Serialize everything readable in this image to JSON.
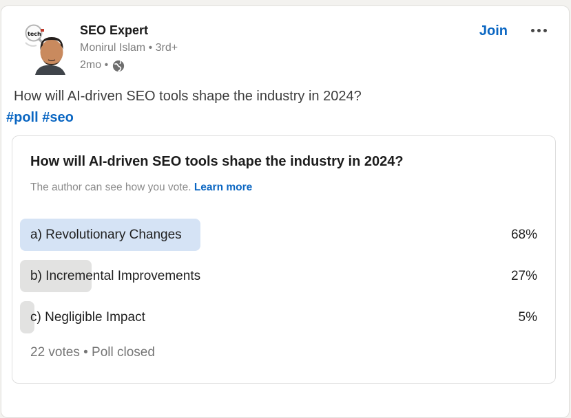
{
  "colors": {
    "accent_blue": "#0a66c2",
    "bar_highlight": "#d5e3f5",
    "bar_neutral": "#e2e2e1"
  },
  "header": {
    "page_name": "SEO Expert",
    "author_line": "Monirul Islam • 3rd+",
    "time_label": "2mo •",
    "join_label": "Join"
  },
  "post": {
    "body_text": "How will AI-driven SEO tools shape the industry in 2024?",
    "hashtags": "#poll #seo"
  },
  "poll": {
    "question": "How will AI-driven SEO tools shape the industry in 2024?",
    "disclaimer": "The author can see how you vote.",
    "learn_more_label": "Learn more",
    "options": [
      {
        "label": "a) Revolutionary Changes",
        "percent": 68,
        "percent_label": "68%",
        "highlight": true
      },
      {
        "label": "b) Incremental Improvements",
        "percent": 27,
        "percent_label": "27%",
        "highlight": false
      },
      {
        "label": "c) Negligible Impact",
        "percent": 5,
        "percent_label": "5%",
        "highlight": false
      }
    ],
    "footer": "22 votes • Poll closed"
  }
}
